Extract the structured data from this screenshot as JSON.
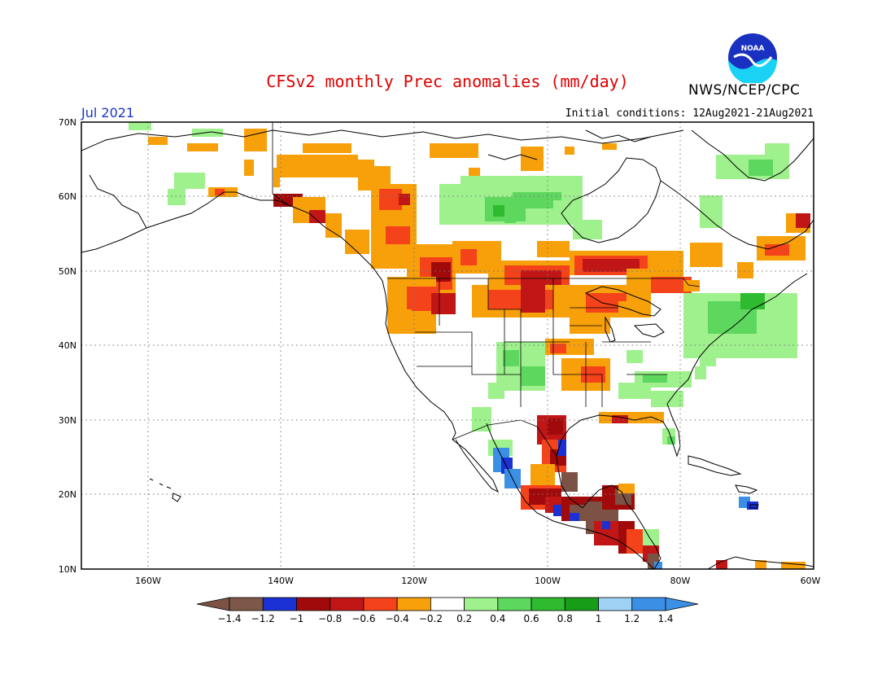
{
  "header": {
    "title": "CFSv2 monthly Prec anomalies (mm/day)",
    "agency": "NWS/NCEP/CPC",
    "month": "Jul 2021",
    "initial_conditions": "Initial conditions: 12Aug2021-21Aug2021",
    "logo_text": "NOAA"
  },
  "map": {
    "lat_labels": [
      "70N",
      "60N",
      "50N",
      "40N",
      "30N",
      "20N",
      "10N"
    ],
    "lon_labels": [
      "160W",
      "140W",
      "120W",
      "100W",
      "80W",
      "60W"
    ]
  },
  "colorbar": {
    "labels": [
      "−1.4",
      "−1.2",
      "−1",
      "−0.8",
      "−0.6",
      "−0.4",
      "−0.2",
      "0.2",
      "0.4",
      "0.6",
      "0.8",
      "1",
      "1.2",
      "1.4"
    ],
    "colors": [
      "#7c5245",
      "#7d5848",
      "#1b31d3",
      "#a10a0a",
      "#c11616",
      "#f4431a",
      "#f7a00a",
      "#ffffff",
      "#9ef18c",
      "#5ed75e",
      "#2fbb2f",
      "#189d18",
      "#9fd2f5",
      "#3b90e6",
      "#3b90e6"
    ]
  },
  "anomaly_colors": {
    "dry_strong": "#7c5245",
    "blue_strong": "#1b31d3",
    "dry_dark": "#a10a0a",
    "dry_red": "#c11616",
    "dry_orange_red": "#f4431a",
    "dry_orange": "#f7a00a",
    "wet_light": "#9ef18c",
    "wet_med": "#5ed75e",
    "wet_dark": "#2fbb2f",
    "wet_light_blue": "#9fd2f5",
    "wet_blue": "#3b90e6"
  }
}
